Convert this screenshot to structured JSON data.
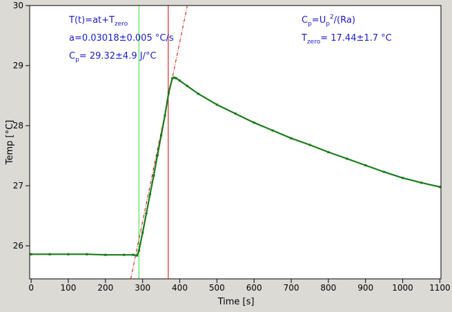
{
  "chart_data": {
    "type": "line",
    "xlabel": "Time [s]",
    "ylabel": "Temp [°C]",
    "xlim": [
      -4,
      1103
    ],
    "ylim": [
      25.45,
      30.0
    ],
    "x_ticks": [
      0,
      100,
      200,
      300,
      400,
      500,
      600,
      700,
      800,
      900,
      1000,
      1100
    ],
    "y_ticks": [
      26,
      27,
      28,
      29,
      30
    ],
    "grid": false,
    "colors": {
      "plot_bg": "#ffffff",
      "frame_bg": "#dcdad5",
      "data": "#1a7a1a",
      "fit_line": "#cc0000",
      "vertical_start": "#33dd33",
      "vertical_end": "#cc0000",
      "annotation_text": "#1a1acc"
    },
    "series": [
      {
        "style": "markers",
        "x": [
          0,
          50,
          100,
          150,
          200,
          250,
          275,
          285,
          290,
          300,
          310,
          320,
          330,
          340,
          350,
          360,
          370,
          380,
          385,
          390,
          400,
          420,
          450,
          500,
          550,
          600,
          650,
          700,
          750,
          800,
          850,
          900,
          950,
          1000,
          1050,
          1100
        ],
        "y": [
          25.86,
          25.86,
          25.86,
          25.86,
          25.85,
          25.85,
          25.85,
          25.84,
          25.92,
          26.22,
          26.54,
          26.86,
          27.17,
          27.51,
          27.84,
          28.17,
          28.55,
          28.79,
          28.8,
          28.79,
          28.75,
          28.66,
          28.53,
          28.35,
          28.2,
          28.05,
          27.92,
          27.79,
          27.68,
          27.56,
          27.45,
          27.34,
          27.23,
          27.13,
          27.05,
          26.98
        ]
      },
      {
        "style": "dash-dot",
        "x": [
          268,
          420
        ],
        "y": [
          25.45,
          29.99
        ]
      }
    ],
    "vertical_lines": [
      {
        "x": 290,
        "role": "start"
      },
      {
        "x": 369,
        "role": "end"
      }
    ],
    "annotations": {
      "left": [
        {
          "parts": [
            {
              "t": "T(t)=at+T"
            },
            {
              "t": "zero",
              "sub": true
            }
          ]
        },
        {
          "parts": [
            {
              "t": "a=0.03018±0.005 °C/s"
            }
          ]
        },
        {
          "parts": [
            {
              "t": "C"
            },
            {
              "t": "p",
              "sub": true
            },
            {
              "t": "= 29.32±4.9 J/°C"
            }
          ]
        }
      ],
      "right": [
        {
          "parts": [
            {
              "t": "C"
            },
            {
              "t": "p",
              "sub": true
            },
            {
              "t": "=U"
            },
            {
              "t": "p",
              "sub": true
            },
            {
              "t": "2",
              "sup": true
            },
            {
              "t": "/(Ra)"
            }
          ]
        },
        {
          "parts": [
            {
              "t": "T"
            },
            {
              "t": "zero",
              "sub": true
            },
            {
              "t": "= 17.44±1.7 °C"
            }
          ]
        }
      ]
    }
  }
}
